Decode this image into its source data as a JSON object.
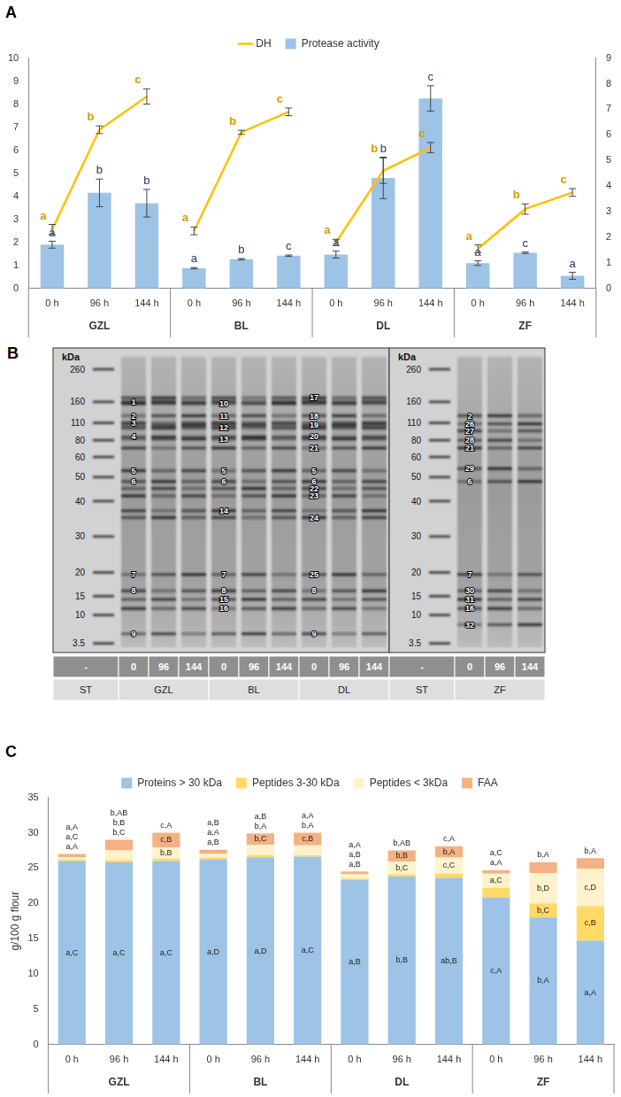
{
  "chart_data": [
    {
      "type": "bar",
      "title": "A",
      "categories": [
        "0 h",
        "96 h",
        "144 h",
        "0 h",
        "96 h",
        "144 h",
        "0 h",
        "96 h",
        "144 h",
        "0 h",
        "96 h",
        "144 h"
      ],
      "groups": [
        "GZL",
        "BL",
        "DL",
        "ZF"
      ],
      "series": [
        {
          "name": "Protease activity",
          "type": "bar",
          "color": "#9dc3e6",
          "values": [
            1.9,
            4.15,
            3.7,
            0.88,
            1.27,
            1.42,
            1.47,
            4.8,
            8.25,
            1.1,
            1.55,
            0.55
          ],
          "errors": [
            0.15,
            0.6,
            0.6,
            0.03,
            0.03,
            0.03,
            0.15,
            0.9,
            0.55,
            0.1,
            0.03,
            0.15
          ],
          "letters": [
            "a",
            "b",
            "b",
            "a",
            "b",
            "c",
            "a",
            "b",
            "c",
            "a",
            "c",
            "a"
          ]
        },
        {
          "name": "DH",
          "type": "line",
          "axis": "y2",
          "color": "#ffc000",
          "values": [
            2.3,
            6.2,
            7.5,
            2.25,
            6.1,
            6.9,
            1.8,
            4.6,
            5.5,
            1.55,
            3.1,
            3.75
          ],
          "errors": [
            0.2,
            0.15,
            0.3,
            0.15,
            0.08,
            0.15,
            0.12,
            0.5,
            0.2,
            0.15,
            0.2,
            0.15
          ],
          "letters": [
            "a",
            "b",
            "c",
            "a",
            "b",
            "c",
            "a",
            "b",
            "c",
            "a",
            "b",
            "c"
          ]
        }
      ],
      "ylim": [
        0,
        10
      ],
      "yticks": [
        0,
        1,
        2,
        3,
        4,
        5,
        6,
        7,
        8,
        9,
        10
      ],
      "y2lim": [
        0,
        9
      ],
      "y2ticks": [
        0,
        1,
        2,
        3,
        4,
        5,
        6,
        7,
        8,
        9
      ],
      "grid": false,
      "legend": "top"
    },
    {
      "type": "bar",
      "title": "C",
      "y_label": "g/100 g flour",
      "stacked": true,
      "categories": [
        "0 h",
        "96 h",
        "144 h",
        "0 h",
        "96 h",
        "144 h",
        "0 h",
        "96 h",
        "144 h",
        "0 h",
        "96 h",
        "144 h"
      ],
      "groups": [
        "GZL",
        "BL",
        "DL",
        "ZF"
      ],
      "series": [
        {
          "name": "Proteins > 30 kDa",
          "color": "#9dc3e6",
          "values": [
            26.0,
            25.8,
            26.0,
            26.2,
            26.5,
            26.6,
            23.3,
            23.8,
            23.6,
            20.8,
            18.0,
            14.7
          ],
          "letters": [
            "a,C",
            "a,C",
            "a,C",
            "a,D",
            "a,D",
            "a,C",
            "a,B",
            "b,B",
            "ab,B",
            "c,A",
            "b,A",
            "a,A"
          ]
        },
        {
          "name": "Peptides 3-30 kDa",
          "color": "#ffd966",
          "values": [
            0.2,
            0.3,
            0.3,
            0.3,
            0.3,
            0.2,
            0.2,
            0.3,
            0.6,
            1.4,
            2.0,
            4.9
          ],
          "letters": [
            "a,A",
            "b,AB",
            "c,A",
            "a,B",
            "a,B",
            "a,A",
            "a,A",
            "b,AB",
            "c,A",
            "a,C",
            "b,C",
            "c,B"
          ]
        },
        {
          "name": "Peptides < 3kDa",
          "color": "#fff2cc",
          "values": [
            0.3,
            1.4,
            1.6,
            0.5,
            1.5,
            1.4,
            0.6,
            1.8,
            2.3,
            2.0,
            4.3,
            5.3
          ],
          "letters": [
            "a,C",
            "b,B",
            "b,B",
            "a,A",
            "b,A",
            "b,A",
            "a,B",
            "b,C",
            "c,C",
            "a,C",
            "b,D",
            "c,D"
          ]
        },
        {
          "name": "FAA",
          "color": "#f4b183",
          "values": [
            0.5,
            1.5,
            2.1,
            0.6,
            1.6,
            1.8,
            0.4,
            1.6,
            1.6,
            0.5,
            1.5,
            1.5
          ],
          "letters": [
            "a,A",
            "b,C",
            "c,B",
            "a,B",
            "b,C",
            "c,B",
            "a,B",
            "b,B",
            "b,A",
            "a,A",
            "b,A",
            "b,A"
          ]
        }
      ],
      "ylim": [
        0,
        35
      ],
      "yticks": [
        0,
        5,
        10,
        15,
        20,
        25,
        30,
        35
      ],
      "grid": false,
      "legend": "top"
    }
  ],
  "gel": {
    "title": "B",
    "axis_label": "kDa",
    "markers": [
      260,
      160,
      110,
      80,
      60,
      50,
      40,
      30,
      20,
      15,
      10,
      3.5
    ],
    "panels": [
      {
        "groups": [
          {
            "name": "ST",
            "times": [
              "-"
            ]
          },
          {
            "name": "GZL",
            "times": [
              "0",
              "96",
              "144"
            ]
          },
          {
            "name": "BL",
            "times": [
              "0",
              "96",
              "144"
            ]
          },
          {
            "name": "DL",
            "times": [
              "0",
              "96",
              "144"
            ]
          }
        ],
        "bands": [
          {
            "number": 1,
            "lane": 1,
            "kda": 160
          },
          {
            "number": 2,
            "lane": 1,
            "kda": 125
          },
          {
            "number": 3,
            "lane": 1,
            "kda": 110
          },
          {
            "number": 4,
            "lane": 1,
            "kda": 85
          },
          {
            "number": 5,
            "lane": 1,
            "kda": 53
          },
          {
            "number": 6,
            "lane": 1,
            "kda": 48
          },
          {
            "number": 7,
            "lane": 1,
            "kda": 19.5
          },
          {
            "number": 8,
            "lane": 1,
            "kda": 16
          },
          {
            "number": 9,
            "lane": 1,
            "kda": 5
          },
          {
            "number": 10,
            "lane": 4,
            "kda": 155
          },
          {
            "number": 11,
            "lane": 4,
            "kda": 125
          },
          {
            "number": 12,
            "lane": 4,
            "kda": 100
          },
          {
            "number": 13,
            "lane": 4,
            "kda": 82
          },
          {
            "number": 5,
            "lane": 4,
            "kda": 53
          },
          {
            "number": 6,
            "lane": 4,
            "kda": 48
          },
          {
            "number": 14,
            "lane": 4,
            "kda": 37
          },
          {
            "number": 7,
            "lane": 4,
            "kda": 19.5
          },
          {
            "number": 8,
            "lane": 4,
            "kda": 16
          },
          {
            "number": 15,
            "lane": 4,
            "kda": 14
          },
          {
            "number": 16,
            "lane": 4,
            "kda": 11.5
          },
          {
            "number": 17,
            "lane": 7,
            "kda": 170
          },
          {
            "number": 18,
            "lane": 7,
            "kda": 125
          },
          {
            "number": 19,
            "lane": 7,
            "kda": 105
          },
          {
            "number": 20,
            "lane": 7,
            "kda": 85
          },
          {
            "number": 21,
            "lane": 7,
            "kda": 70
          },
          {
            "number": 5,
            "lane": 7,
            "kda": 53
          },
          {
            "number": 6,
            "lane": 7,
            "kda": 48
          },
          {
            "number": 22,
            "lane": 7,
            "kda": 45
          },
          {
            "number": 23,
            "lane": 7,
            "kda": 42
          },
          {
            "number": 24,
            "lane": 7,
            "kda": 35
          },
          {
            "number": 25,
            "lane": 7,
            "kda": 19.5
          },
          {
            "number": 8,
            "lane": 7,
            "kda": 16
          },
          {
            "number": 9,
            "lane": 7,
            "kda": 5
          }
        ]
      },
      {
        "groups": [
          {
            "name": "ST",
            "times": [
              "-"
            ]
          },
          {
            "name": "ZF",
            "times": [
              "0",
              "96",
              "144"
            ]
          }
        ],
        "bands": [
          {
            "number": 2,
            "lane": 1,
            "kda": 125
          },
          {
            "number": 26,
            "lane": 1,
            "kda": 108
          },
          {
            "number": 27,
            "lane": 1,
            "kda": 95
          },
          {
            "number": 28,
            "lane": 1,
            "kda": 80
          },
          {
            "number": 21,
            "lane": 1,
            "kda": 70
          },
          {
            "number": 29,
            "lane": 1,
            "kda": 54
          },
          {
            "number": 6,
            "lane": 1,
            "kda": 48
          },
          {
            "number": 7,
            "lane": 1,
            "kda": 19.5
          },
          {
            "number": 30,
            "lane": 1,
            "kda": 16
          },
          {
            "number": 31,
            "lane": 1,
            "kda": 14
          },
          {
            "number": 16,
            "lane": 1,
            "kda": 11.5
          },
          {
            "number": 32,
            "lane": 1,
            "kda": 7
          }
        ]
      }
    ]
  }
}
